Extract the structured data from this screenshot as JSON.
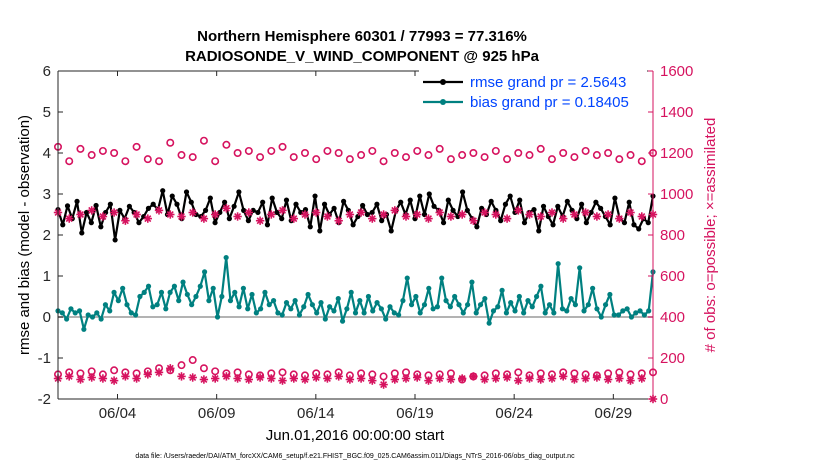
{
  "chart_data": {
    "type": "line",
    "title": [
      "Northern Hemisphere 60301 / 77993 = 77.316%",
      "RADIOSONDE_V_WIND_COMPONENT @ 925 hPa"
    ],
    "xlabel": "Jun.01,2016 00:00:00 start",
    "ylabel_left": "rmse and bias (model - observation)",
    "ylabel_right": "# of obs: o=possible; ×=assimilated",
    "footer": "data file: /Users/raeder/DAI/ATM_forcXX/CAM6_setup/f.e21.FHIST_BGC.f09_025.CAM6assim.011/Diags_NTrS_2016-06/obs_diag_output.nc",
    "x_range": [
      1.0,
      31.0
    ],
    "ylim_left": [
      -2,
      6
    ],
    "ylim_right": [
      0,
      1600
    ],
    "x_ticks": [
      4,
      9,
      14,
      19,
      24,
      29
    ],
    "x_tick_labels": [
      "06/04",
      "06/09",
      "06/14",
      "06/19",
      "06/24",
      "06/29"
    ],
    "y_ticks_left": [
      -2,
      -1,
      0,
      1,
      2,
      3,
      4,
      5,
      6
    ],
    "y_ticks_right": [
      0,
      200,
      400,
      600,
      800,
      1000,
      1200,
      1400,
      1600
    ],
    "grid": false,
    "zero_line": 0,
    "legend_position": "top-right",
    "series": [
      {
        "name": "rmse grand pr = 2.5643",
        "axis": "left",
        "color": "#000000",
        "marker": "filled-circle",
        "values": [
          2.62,
          2.25,
          2.71,
          2.4,
          2.82,
          2.05,
          2.55,
          2.3,
          2.72,
          2.2,
          2.55,
          2.75,
          1.88,
          2.6,
          2.4,
          2.7,
          2.55,
          2.3,
          2.45,
          2.65,
          2.75,
          2.62,
          3.08,
          2.5,
          2.95,
          2.75,
          2.4,
          3.05,
          2.8,
          2.5,
          2.45,
          2.6,
          2.9,
          2.3,
          2.55,
          2.8,
          2.4,
          2.7,
          3.05,
          2.6,
          2.35,
          2.6,
          2.55,
          2.8,
          2.25,
          2.9,
          2.55,
          2.4,
          2.85,
          2.35,
          2.75,
          2.55,
          2.62,
          2.2,
          2.95,
          2.1,
          2.75,
          2.5,
          2.65,
          2.3,
          2.82,
          2.6,
          2.25,
          2.45,
          2.72,
          2.5,
          2.55,
          2.75,
          2.35,
          2.5,
          2.1,
          2.6,
          2.8,
          2.5,
          2.85,
          2.4,
          2.95,
          2.5,
          3.0,
          2.7,
          2.6,
          2.3,
          2.85,
          2.6,
          2.45,
          3.05,
          2.6,
          2.4,
          2.2,
          2.65,
          2.5,
          2.82,
          2.6,
          2.35,
          2.75,
          2.95,
          2.55,
          2.85,
          2.3,
          2.55,
          2.62,
          2.1,
          2.7,
          2.45,
          2.25,
          2.7,
          2.45,
          2.82,
          2.6,
          2.4,
          2.75,
          2.3,
          2.55,
          2.8,
          2.65,
          2.45,
          2.25,
          2.9,
          2.4,
          2.3,
          2.8,
          2.25,
          2.15,
          2.4,
          2.3,
          2.95
        ]
      },
      {
        "name": "bias grand pr = 0.18405",
        "axis": "left",
        "color": "#008080",
        "marker": "filled-circle",
        "values": [
          0.15,
          0.1,
          -0.05,
          0.2,
          0.1,
          0.15,
          -0.3,
          0.05,
          0.0,
          0.1,
          -0.05,
          0.3,
          0.15,
          0.6,
          0.4,
          0.7,
          0.3,
          0.1,
          0.05,
          0.5,
          0.6,
          0.75,
          0.25,
          0.3,
          0.6,
          0.2,
          0.6,
          0.75,
          0.4,
          0.85,
          0.55,
          0.3,
          0.5,
          0.75,
          1.1,
          0.4,
          0.7,
          0.0,
          0.5,
          1.45,
          0.4,
          0.6,
          0.25,
          0.7,
          0.2,
          0.55,
          0.1,
          0.2,
          0.6,
          0.3,
          0.4,
          0.1,
          0.05,
          0.35,
          0.2,
          0.4,
          0.05,
          0.25,
          0.55,
          0.3,
          0.1,
          0.35,
          -0.05,
          0.25,
          0.15,
          0.45,
          -0.1,
          0.2,
          0.6,
          0.1,
          0.4,
          0.1,
          0.5,
          0.15,
          0.35,
          0.2,
          -0.05,
          0.25,
          0.1,
          0.05,
          0.4,
          0.95,
          0.3,
          0.5,
          0.1,
          0.3,
          0.7,
          0.2,
          0.25,
          0.95,
          0.4,
          0.25,
          0.5,
          0.3,
          0.1,
          0.3,
          0.85,
          0.1,
          0.3,
          0.45,
          -0.15,
          0.15,
          0.25,
          0.65,
          0.1,
          0.35,
          0.15,
          0.5,
          0.1,
          0.4,
          0.25,
          0.5,
          0.75,
          0.1,
          0.3,
          0.1,
          1.3,
          0.2,
          0.15,
          0.45,
          0.3,
          1.2,
          0.15,
          0.3,
          0.7,
          0.2,
          0.0,
          0.3,
          0.55,
          0.05,
          0.05,
          0.15,
          0.2,
          0.0,
          0.1,
          0.15,
          0.05,
          0.15,
          1.1
        ]
      },
      {
        "name": "",
        "axis": "right",
        "color": "#d6135f",
        "marker": "open-circle",
        "values": [
          1230,
          1160,
          1220,
          1190,
          1210,
          1200,
          1160,
          1230,
          1170,
          1160,
          1250,
          1190,
          1180,
          1260,
          1160,
          1240,
          1200,
          1210,
          1180,
          1210,
          1230,
          1180,
          1200,
          1170,
          1210,
          1200,
          1170,
          1190,
          1210,
          1160,
          1200,
          1180,
          1210,
          1190,
          1220,
          1170,
          1190,
          1200,
          1180,
          1210,
          1170,
          1200,
          1190,
          1220,
          1170,
          1200,
          1180,
          1210,
          1190,
          1200,
          1170,
          1190,
          1160,
          1200
        ]
      },
      {
        "name": "",
        "axis": "right",
        "color": "#d6135f",
        "marker": "asterisk",
        "values": [
          910,
          880,
          900,
          920,
          890,
          910,
          870,
          900,
          880,
          920,
          900,
          890,
          910,
          880,
          900,
          930,
          890,
          910,
          870,
          900,
          920,
          880,
          900,
          910,
          890,
          870,
          900,
          910,
          880,
          900,
          920,
          890,
          900,
          880,
          910,
          890,
          900,
          870,
          910,
          900,
          880,
          920,
          900,
          890,
          910,
          880,
          900,
          910,
          890,
          900,
          880,
          910,
          890,
          900
        ]
      },
      {
        "name": "",
        "axis": "right",
        "color": "#d6135f",
        "marker": "open-circle",
        "values": [
          120,
          130,
          125,
          135,
          120,
          140,
          130,
          125,
          135,
          150,
          140,
          165,
          190,
          150,
          135,
          125,
          130,
          120,
          115,
          125,
          130,
          120,
          115,
          125,
          120,
          130,
          115,
          125,
          120,
          110,
          125,
          130,
          120,
          115,
          120,
          125,
          95,
          110,
          115,
          125,
          120,
          130,
          115,
          125,
          120,
          130,
          125,
          120,
          115,
          125,
          130,
          120,
          125,
          130
        ]
      },
      {
        "name": "",
        "axis": "right",
        "color": "#d6135f",
        "marker": "asterisk",
        "values": [
          100,
          110,
          95,
          105,
          100,
          90,
          110,
          100,
          120,
          130,
          150,
          110,
          105,
          95,
          100,
          110,
          100,
          95,
          105,
          100,
          90,
          100,
          95,
          105,
          100,
          110,
          95,
          100,
          90,
          70,
          95,
          100,
          105,
          90,
          100,
          95,
          100,
          110,
          95,
          100,
          105,
          90,
          100,
          95,
          100,
          110,
          95,
          100,
          105,
          95,
          100,
          90,
          100,
          0
        ]
      }
    ]
  }
}
